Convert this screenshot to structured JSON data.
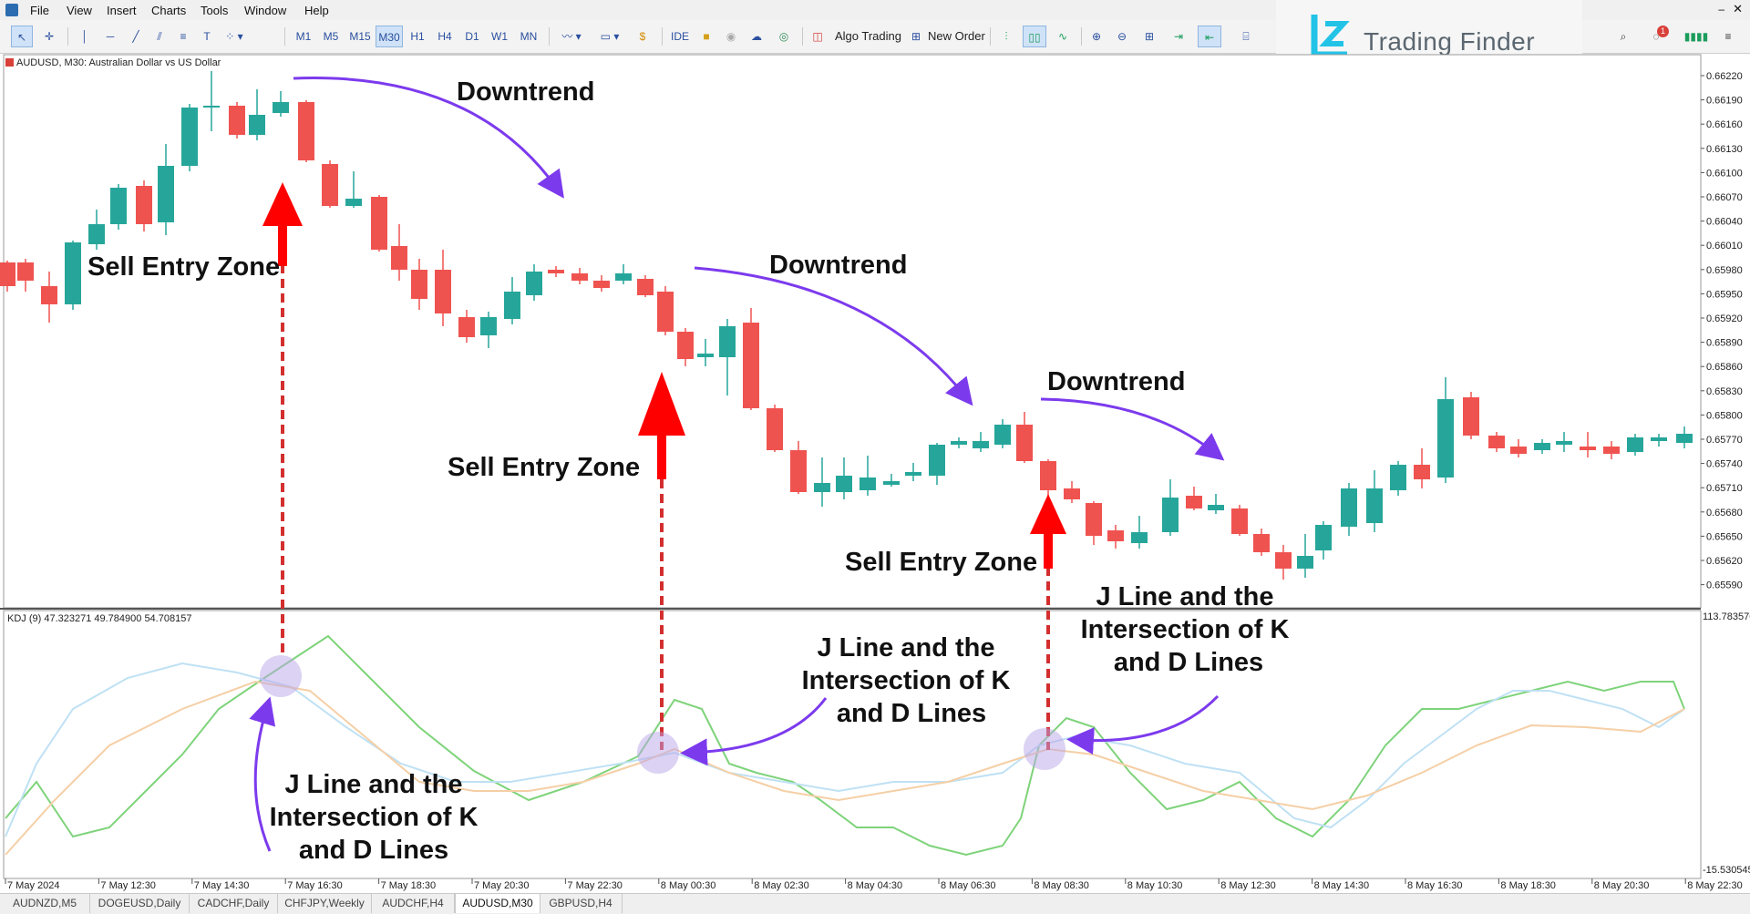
{
  "menu": [
    "File",
    "View",
    "Insert",
    "Charts",
    "Tools",
    "Window",
    "Help"
  ],
  "toolbar": {
    "timeframes": [
      "M1",
      "M5",
      "M15",
      "M30",
      "H1",
      "H4",
      "D1",
      "W1",
      "MN"
    ],
    "selected_timeframe": "M30",
    "ide_label": "IDE",
    "algo_trading_label": "Algo Trading",
    "new_order_label": "New Order",
    "notification_count": "1"
  },
  "brand": {
    "name": "Trading Finder",
    "accent": "#22c3e6"
  },
  "chart": {
    "symbol_label": "AUDUSD, M30:  Australian Dollar vs US Dollar",
    "indicator_label": "KDJ (9) 47.323271 49.784900 54.708157",
    "indicator_top": "113.783576",
    "indicator_bottom": "-15.530545",
    "bull_color": "#26a69a",
    "bear_color": "#ef5350",
    "price_ticks": [
      "0.66220",
      "0.66190",
      "0.66160",
      "0.66130",
      "0.66100",
      "0.66070",
      "0.66040",
      "0.66010",
      "0.65980",
      "0.65950",
      "0.65920",
      "0.65890",
      "0.65860",
      "0.65830",
      "0.65800",
      "0.65770",
      "0.65740",
      "0.65710",
      "0.65680",
      "0.65650",
      "0.65620",
      "0.65590"
    ],
    "time_ticks": [
      "7 May 2024",
      "7 May 12:30",
      "7 May 14:30",
      "7 May 16:30",
      "7 May 18:30",
      "7 May 20:30",
      "7 May 22:30",
      "8 May 00:30",
      "8 May 02:30",
      "8 May 04:30",
      "8 May 06:30",
      "8 May 08:30",
      "8 May 10:30",
      "8 May 12:30",
      "8 May 14:30",
      "8 May 16:30",
      "8 May 18:30",
      "8 May 20:30",
      "8 May 22:30"
    ],
    "annotations": {
      "downtrend_1": "Downtrend",
      "downtrend_2": "Downtrend",
      "downtrend_3": "Downtrend",
      "sell_zone_1": "Sell Entry Zone",
      "sell_zone_2": "Sell Entry Zone",
      "sell_zone_3": "Sell Entry Zone",
      "kdj_note_1": [
        "J Line and the",
        "Intersection of K",
        "and D Lines"
      ],
      "kdj_note_2": [
        "J Line and the",
        "Intersection of K",
        "and D Lines"
      ],
      "kdj_note_3": [
        "J Line and the",
        "Intersection of K",
        "and D Lines"
      ]
    }
  },
  "tabs": [
    "AUDNZD,M5",
    "DOGEUSD,Daily",
    "CADCHF,Daily",
    "CHFJPY,Weekly",
    "AUDCHF,H4",
    "AUDUSD,M30",
    "GBPUSD,H4"
  ],
  "active_tab": "AUDUSD,M30"
}
